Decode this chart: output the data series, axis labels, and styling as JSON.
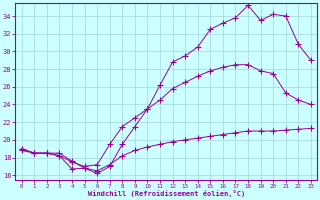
{
  "xlabel": "Windchill (Refroidissement éolien,°C)",
  "bg_color": "#ccffff",
  "line_color": "#990099",
  "xlim": [
    -0.5,
    23.5
  ],
  "ylim": [
    15.5,
    35.5
  ],
  "yticks": [
    16,
    18,
    20,
    22,
    24,
    26,
    28,
    30,
    32,
    34
  ],
  "xticks": [
    0,
    1,
    2,
    3,
    4,
    5,
    6,
    7,
    8,
    9,
    10,
    11,
    12,
    13,
    14,
    15,
    16,
    17,
    18,
    19,
    20,
    21,
    22,
    23
  ],
  "line1_x": [
    0,
    1,
    2,
    3,
    4,
    5,
    6,
    7,
    8,
    9,
    10,
    11,
    12,
    13,
    14,
    15,
    16,
    17,
    18,
    19,
    20,
    21,
    22,
    23
  ],
  "line1_y": [
    19.0,
    18.5,
    18.5,
    18.2,
    16.7,
    16.8,
    16.2,
    17.0,
    19.5,
    21.5,
    23.5,
    26.2,
    28.8,
    29.5,
    30.5,
    32.5,
    33.2,
    33.8,
    35.2,
    33.5,
    34.2,
    34.0,
    30.8,
    29.0
  ],
  "line2_x": [
    0,
    1,
    2,
    3,
    4,
    5,
    6,
    7,
    8,
    9,
    10,
    11,
    12,
    13,
    14,
    15,
    16,
    17,
    18,
    19,
    20,
    21,
    22,
    23
  ],
  "line2_y": [
    19.0,
    18.5,
    18.5,
    18.2,
    17.5,
    17.0,
    17.2,
    19.5,
    21.5,
    22.5,
    23.5,
    24.5,
    25.8,
    26.5,
    27.2,
    27.8,
    28.2,
    28.5,
    28.5,
    27.8,
    27.5,
    25.3,
    24.5,
    24.0
  ],
  "line3_x": [
    0,
    1,
    2,
    3,
    4,
    5,
    6,
    7,
    8,
    9,
    10,
    11,
    12,
    13,
    14,
    15,
    16,
    17,
    18,
    19,
    20,
    21,
    22,
    23
  ],
  "line3_y": [
    18.8,
    18.5,
    18.5,
    18.5,
    17.6,
    16.8,
    16.5,
    17.2,
    18.2,
    18.8,
    19.2,
    19.5,
    19.8,
    20.0,
    20.2,
    20.4,
    20.6,
    20.8,
    21.0,
    21.0,
    21.0,
    21.1,
    21.2,
    21.3
  ]
}
